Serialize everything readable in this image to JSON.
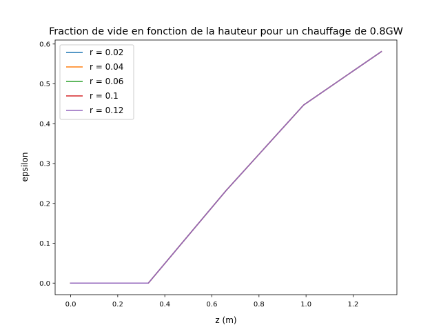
{
  "chart_data": {
    "type": "line",
    "title": "Fraction de vide en fonction de la hauteur pour un chauffage de 0.8GW",
    "xlabel": "z (m)",
    "ylabel": "epsilon",
    "xlim": [
      -0.066,
      1.386
    ],
    "ylim": [
      -0.029,
      0.61
    ],
    "x_ticks": [
      0.0,
      0.2,
      0.4,
      0.6,
      0.8,
      1.0,
      1.2
    ],
    "x_tick_labels": [
      "0.0",
      "0.2",
      "0.4",
      "0.6",
      "0.8",
      "1.0",
      "1.2"
    ],
    "y_ticks": [
      0.0,
      0.1,
      0.2,
      0.3,
      0.4,
      0.5,
      0.6
    ],
    "y_tick_labels": [
      "0.0",
      "0.1",
      "0.2",
      "0.3",
      "0.4",
      "0.5",
      "0.6"
    ],
    "grid": false,
    "legend_position": "top-left",
    "x": [
      0.0,
      0.33,
      0.66,
      0.99,
      1.32
    ],
    "series": [
      {
        "name": "r = 0.02",
        "color": "#1f77b4",
        "values": [
          0.0,
          0.0,
          0.232,
          0.447,
          0.581
        ]
      },
      {
        "name": "r = 0.04",
        "color": "#ff7f0e",
        "values": [
          0.0,
          0.0,
          0.232,
          0.447,
          0.581
        ]
      },
      {
        "name": "r = 0.06",
        "color": "#2ca02c",
        "values": [
          0.0,
          0.0,
          0.232,
          0.447,
          0.581
        ]
      },
      {
        "name": "r = 0.1",
        "color": "#d62728",
        "values": [
          0.0,
          0.0,
          0.232,
          0.447,
          0.581
        ]
      },
      {
        "name": "r = 0.12",
        "color": "#9467bd",
        "values": [
          0.0,
          0.0,
          0.232,
          0.447,
          0.581
        ]
      }
    ]
  }
}
